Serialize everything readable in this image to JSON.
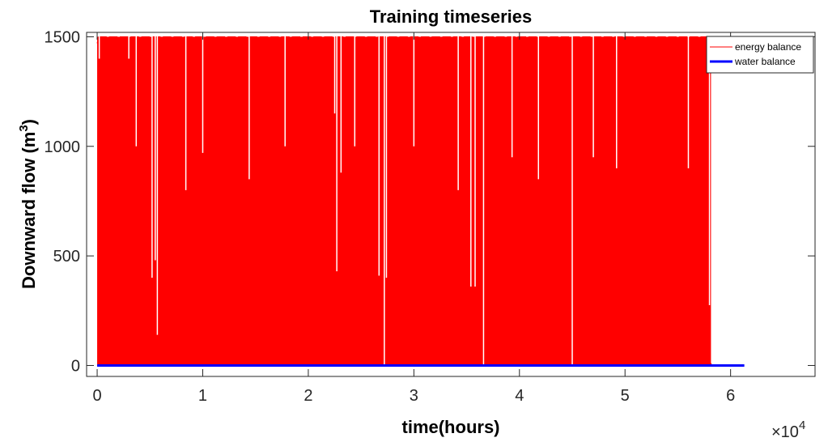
{
  "chart_data": {
    "type": "area",
    "title": "Training timeseries",
    "xlabel": "time(hours)",
    "ylabel": "Downward flow (m",
    "ylabel_superscript": "3",
    "ylabel_suffix": ")",
    "x_exponent_base": "×10",
    "x_exponent_power": "4",
    "xlim": [
      -0.1,
      6.8
    ],
    "ylim": [
      -50,
      1520
    ],
    "x_ticks": [
      0,
      1,
      2,
      3,
      4,
      5,
      6
    ],
    "x_tick_labels": [
      "0",
      "1",
      "2",
      "3",
      "4",
      "5",
      "6"
    ],
    "y_ticks": [
      0,
      500,
      1000,
      1500
    ],
    "y_tick_labels": [
      "0",
      "500",
      "1000",
      "1500"
    ],
    "grid": false,
    "legend_position": "top-right",
    "series": [
      {
        "name": "energy balance",
        "color": "#ff0000",
        "description": "dense hourly series filling 0 to about 1500, with intermittent dips",
        "x_range": [
          0,
          5.82
        ],
        "typical_max": 1500,
        "dips": [
          [
            0.02,
            1400
          ],
          [
            0.3,
            1400
          ],
          [
            0.37,
            1000
          ],
          [
            0.52,
            400
          ],
          [
            0.55,
            480
          ],
          [
            0.57,
            140
          ],
          [
            0.84,
            800
          ],
          [
            1.0,
            970
          ],
          [
            1.44,
            850
          ],
          [
            1.78,
            1000
          ],
          [
            2.25,
            1150
          ],
          [
            2.27,
            430
          ],
          [
            2.31,
            880
          ],
          [
            2.44,
            1000
          ],
          [
            2.67,
            410
          ],
          [
            2.72,
            0
          ],
          [
            2.74,
            400
          ],
          [
            3.0,
            1000
          ],
          [
            3.42,
            800
          ],
          [
            3.54,
            360
          ],
          [
            3.58,
            360
          ],
          [
            3.66,
            0
          ],
          [
            3.93,
            950
          ],
          [
            4.18,
            850
          ],
          [
            4.5,
            0
          ],
          [
            4.7,
            950
          ],
          [
            4.92,
            900
          ],
          [
            5.6,
            900
          ],
          [
            5.8,
            275
          ],
          [
            5.82,
            10
          ]
        ]
      },
      {
        "name": "water balance",
        "color": "#0000ff",
        "x_range": [
          0,
          6.13
        ],
        "value": 0
      }
    ]
  }
}
